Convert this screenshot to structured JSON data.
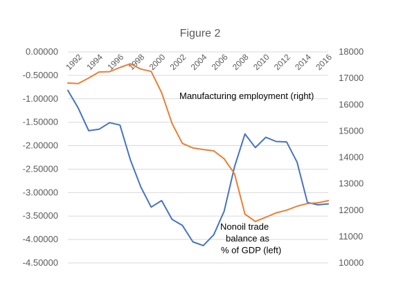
{
  "chart_data": {
    "type": "line",
    "title": "Figure 2",
    "x": [
      1992,
      1993,
      1994,
      1995,
      1996,
      1997,
      1998,
      1999,
      2000,
      2001,
      2002,
      2003,
      2004,
      2005,
      2006,
      2007,
      2008,
      2009,
      2010,
      2011,
      2012,
      2013,
      2014,
      2015,
      2016,
      2017
    ],
    "x_tick_labels": [
      "1992",
      "1994",
      "1996",
      "1998",
      "2000",
      "2002",
      "2004",
      "2006",
      "2008",
      "2010",
      "2012",
      "2014",
      "2016"
    ],
    "y_left": {
      "ticks": [
        "0.00000",
        "-0.50000",
        "-1.00000",
        "-1.50000",
        "-2.00000",
        "-2.50000",
        "-3.00000",
        "-3.50000",
        "-4.00000",
        "-4.50000"
      ],
      "ylim": [
        -4.5,
        0
      ]
    },
    "y_right": {
      "ticks": [
        "18000",
        "17000",
        "16000",
        "15000",
        "14000",
        "13000",
        "12000",
        "11000",
        "10000"
      ],
      "ylim": [
        10000,
        18000
      ]
    },
    "series": [
      {
        "name": "Nonoil trade balance as % of GDP (left)",
        "axis": "left",
        "color": "#4472c4",
        "values": [
          -0.82,
          -1.2,
          -1.68,
          -1.65,
          -1.51,
          -1.56,
          -2.3,
          -2.88,
          -3.31,
          -3.17,
          -3.57,
          -3.7,
          -4.05,
          -4.13,
          -3.9,
          -3.4,
          -2.45,
          -1.75,
          -2.04,
          -1.82,
          -1.91,
          -1.92,
          -2.35,
          -3.21,
          -3.26,
          -3.24
        ]
      },
      {
        "name": "Manufacturing employment (right)",
        "axis": "right",
        "color": "#ed7d31",
        "values": [
          16820,
          16800,
          17010,
          17240,
          17250,
          17410,
          17550,
          17350,
          17260,
          16450,
          15290,
          14530,
          14360,
          14300,
          14250,
          13950,
          13380,
          11850,
          11570,
          11730,
          11900,
          12000,
          12150,
          12250,
          12280,
          12360
        ]
      }
    ],
    "annotations": {
      "manufacturing": "Manufacturing employment (right)",
      "nonoil_line1": "Nonoil trade",
      "nonoil_line2": "balance as",
      "nonoil_line3": "% of GDP (left)"
    },
    "grid": true,
    "legend": "none"
  }
}
